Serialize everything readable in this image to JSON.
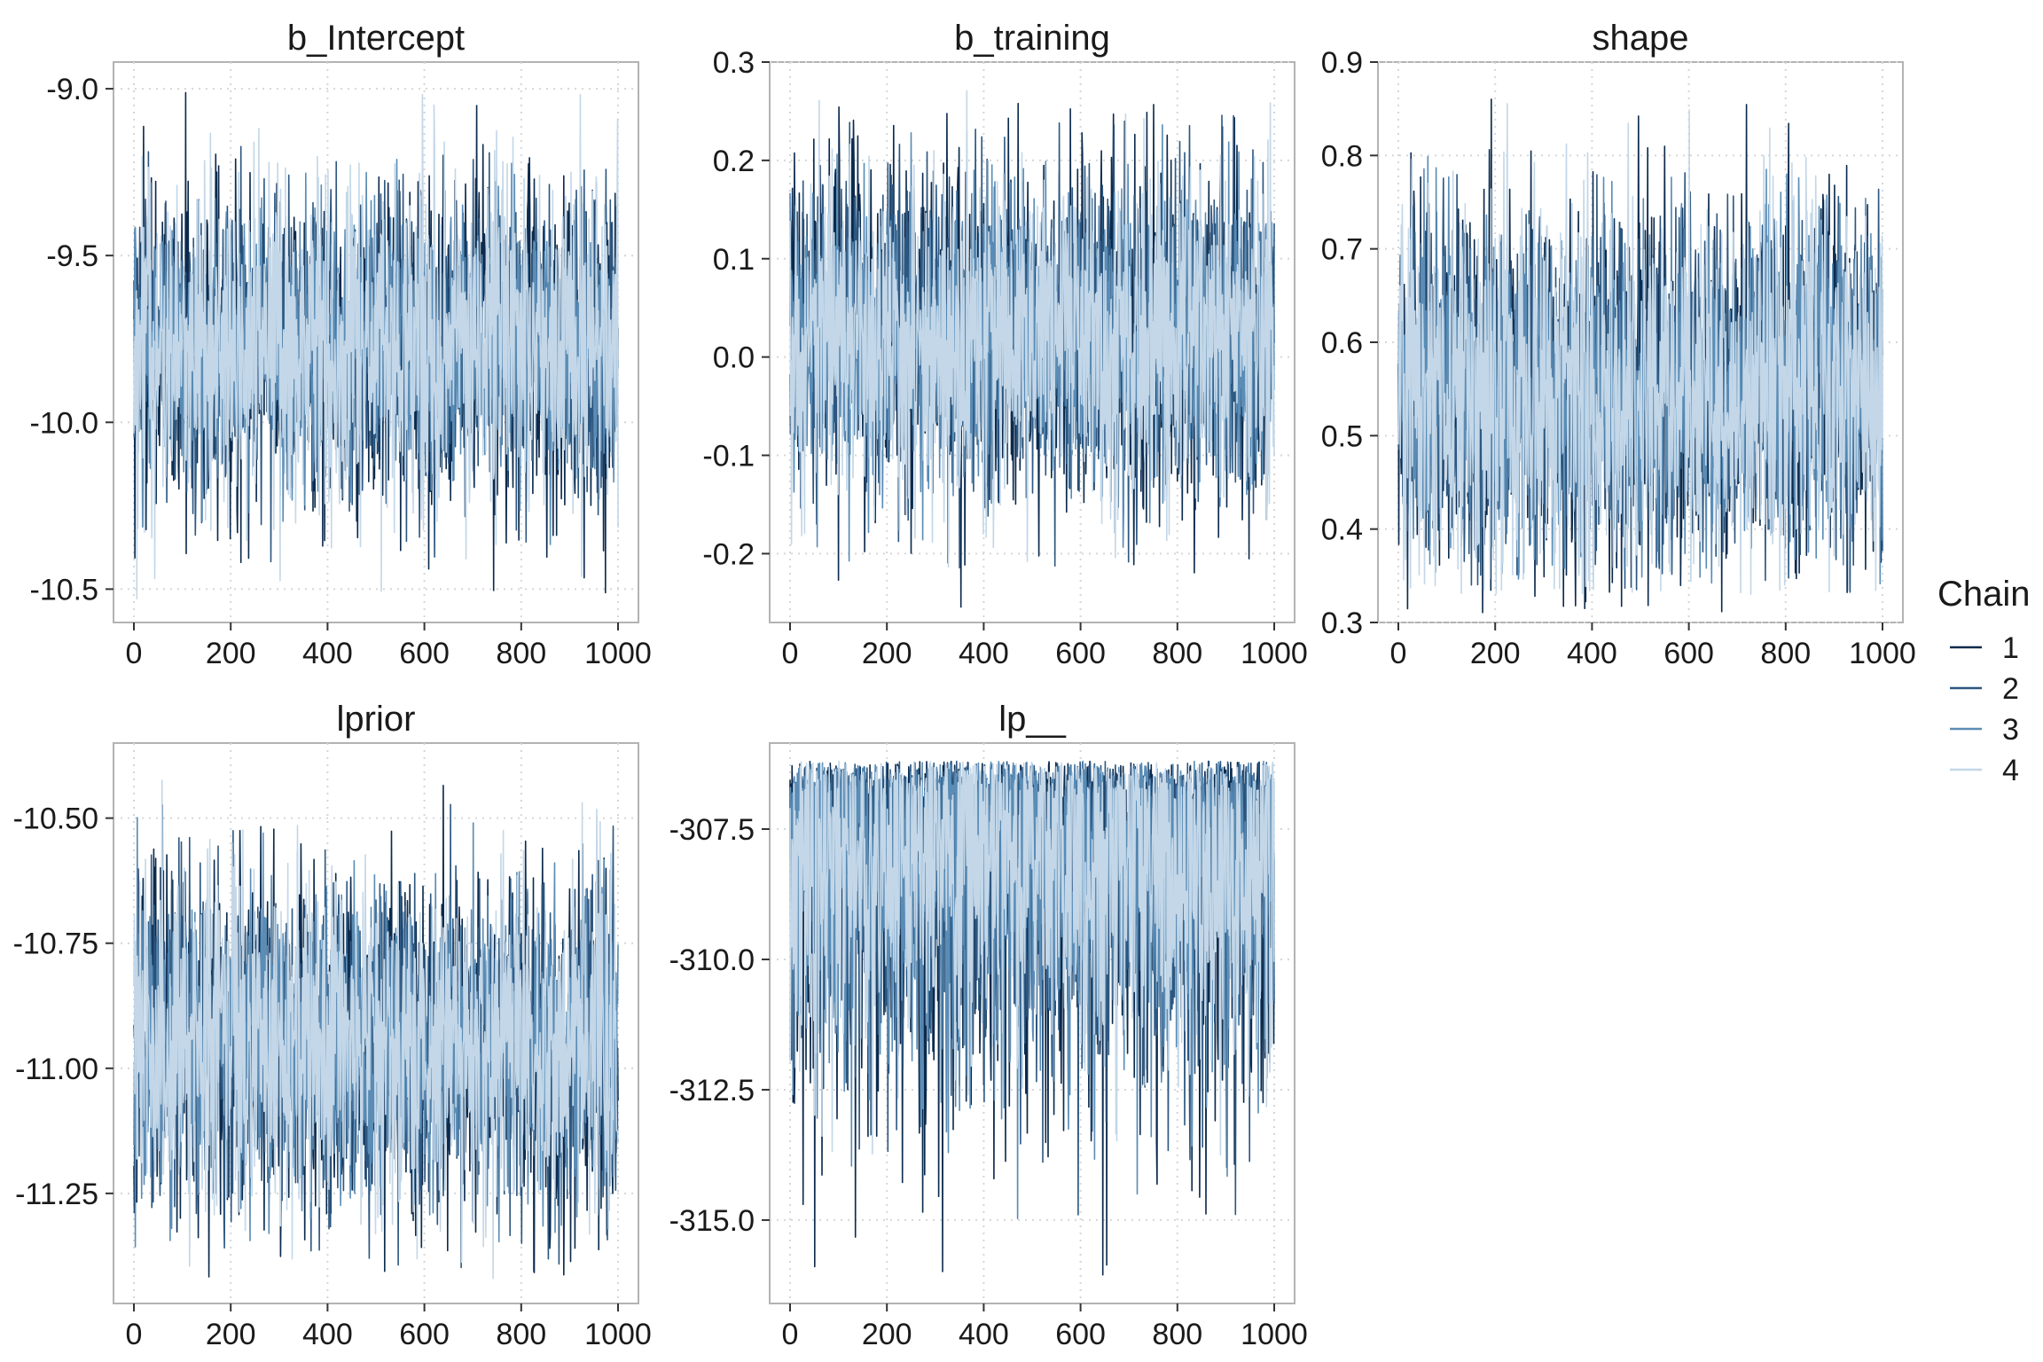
{
  "chart_data": [
    {
      "type": "line",
      "title": "b_Intercept",
      "xlim": [
        0,
        1000
      ],
      "ylim": [
        -10.6,
        -8.92
      ],
      "xticks": [
        0,
        200,
        400,
        600,
        800,
        1000
      ],
      "xtick_labels": [
        "0",
        "200",
        "400",
        "600",
        "800",
        "1000"
      ],
      "yticks": [
        -9.0,
        -9.5,
        -10.0,
        -10.5
      ],
      "ytick_labels": [
        "-9.0",
        "-9.5",
        "-10.0",
        "-10.5"
      ],
      "grid": true,
      "series_summary": [
        {
          "name": "1",
          "mean": -9.77,
          "min": -10.54,
          "max": -8.99
        },
        {
          "name": "2",
          "mean": -9.77,
          "min": -10.44,
          "max": -9.17
        },
        {
          "name": "3",
          "mean": -9.77,
          "min": -10.4,
          "max": -9.2
        },
        {
          "name": "4",
          "mean": -9.77,
          "min": -10.53,
          "max": -9.0
        }
      ]
    },
    {
      "type": "line",
      "title": "b_training",
      "xlim": [
        0,
        1000
      ],
      "ylim": [
        -0.27,
        0.3
      ],
      "xticks": [
        0,
        200,
        400,
        600,
        800,
        1000
      ],
      "xtick_labels": [
        "0",
        "200",
        "400",
        "600",
        "800",
        "1000"
      ],
      "yticks": [
        0.3,
        0.2,
        0.1,
        0.0,
        -0.1,
        -0.2
      ],
      "ytick_labels": [
        "0.3",
        "0.2",
        "0.1",
        "0.0",
        "-0.1",
        "-0.2"
      ],
      "grid": true,
      "series_summary": [
        {
          "name": "1",
          "mean": 0.02,
          "min": -0.255,
          "max": 0.27
        },
        {
          "name": "2",
          "mean": 0.02,
          "min": -0.23,
          "max": 0.25
        },
        {
          "name": "3",
          "mean": 0.02,
          "min": -0.22,
          "max": 0.24
        },
        {
          "name": "4",
          "mean": 0.02,
          "min": -0.22,
          "max": 0.28
        }
      ]
    },
    {
      "type": "line",
      "title": "shape",
      "xlim": [
        0,
        1000
      ],
      "ylim": [
        0.3,
        0.9
      ],
      "xticks": [
        0,
        200,
        400,
        600,
        800,
        1000
      ],
      "xtick_labels": [
        "0",
        "200",
        "400",
        "600",
        "800",
        "1000"
      ],
      "yticks": [
        0.9,
        0.8,
        0.7,
        0.6,
        0.5,
        0.4,
        0.3
      ],
      "ytick_labels": [
        "0.9",
        "0.8",
        "0.7",
        "0.6",
        "0.5",
        "0.4",
        "0.3"
      ],
      "grid": true,
      "series_summary": [
        {
          "name": "1",
          "mean": 0.55,
          "min": 0.31,
          "max": 0.865
        },
        {
          "name": "2",
          "mean": 0.55,
          "min": 0.33,
          "max": 0.83
        },
        {
          "name": "3",
          "mean": 0.55,
          "min": 0.34,
          "max": 0.82
        },
        {
          "name": "4",
          "mean": 0.55,
          "min": 0.33,
          "max": 0.87
        }
      ]
    },
    {
      "type": "line",
      "title": "lprior",
      "xlim": [
        0,
        1000
      ],
      "ylim": [
        -11.47,
        -10.35
      ],
      "xticks": [
        0,
        200,
        400,
        600,
        800,
        1000
      ],
      "xtick_labels": [
        "0",
        "200",
        "400",
        "600",
        "800",
        "1000"
      ],
      "yticks": [
        -10.5,
        -10.75,
        -11.0,
        -11.25
      ],
      "ytick_labels": [
        "-10.50",
        "-10.75",
        "-11.00",
        "-11.25"
      ],
      "grid": true,
      "series_summary": [
        {
          "name": "1",
          "mean": -10.95,
          "min": -11.42,
          "max": -10.4
        },
        {
          "name": "2",
          "mean": -10.95,
          "min": -11.4,
          "max": -10.45
        },
        {
          "name": "3",
          "mean": -10.95,
          "min": -11.4,
          "max": -10.48
        },
        {
          "name": "4",
          "mean": -10.95,
          "min": -11.42,
          "max": -10.42
        }
      ]
    },
    {
      "type": "line",
      "title": "lp__",
      "xlim": [
        0,
        1000
      ],
      "ylim": [
        -316.6,
        -305.85
      ],
      "xticks": [
        0,
        200,
        400,
        600,
        800,
        1000
      ],
      "xtick_labels": [
        "0",
        "200",
        "400",
        "600",
        "800",
        "1000"
      ],
      "yticks": [
        -307.5,
        -310.0,
        -312.5,
        -315.0
      ],
      "ytick_labels": [
        "-307.5",
        "-310.0",
        "-312.5",
        "-315.0"
      ],
      "grid": true,
      "series_summary": [
        {
          "name": "1",
          "mean": -308.0,
          "min": -316.5,
          "max": -306.2
        },
        {
          "name": "2",
          "mean": -308.0,
          "min": -315.0,
          "max": -306.2
        },
        {
          "name": "3",
          "mean": -308.0,
          "min": -315.1,
          "max": -306.2
        },
        {
          "name": "4",
          "mean": -308.0,
          "min": -314.2,
          "max": -306.2
        }
      ]
    }
  ],
  "legend": {
    "title": "Chain",
    "placement": "right",
    "entries": [
      {
        "label": "1",
        "color": "#0b2a4d"
      },
      {
        "label": "2",
        "color": "#2d5780"
      },
      {
        "label": "3",
        "color": "#5a8cb5"
      },
      {
        "label": "4",
        "color": "#c3d7e8"
      }
    ]
  },
  "colors": {
    "panel_border": "#b3b3b3",
    "grid": "#d6d6d6",
    "tick": "#333333"
  }
}
